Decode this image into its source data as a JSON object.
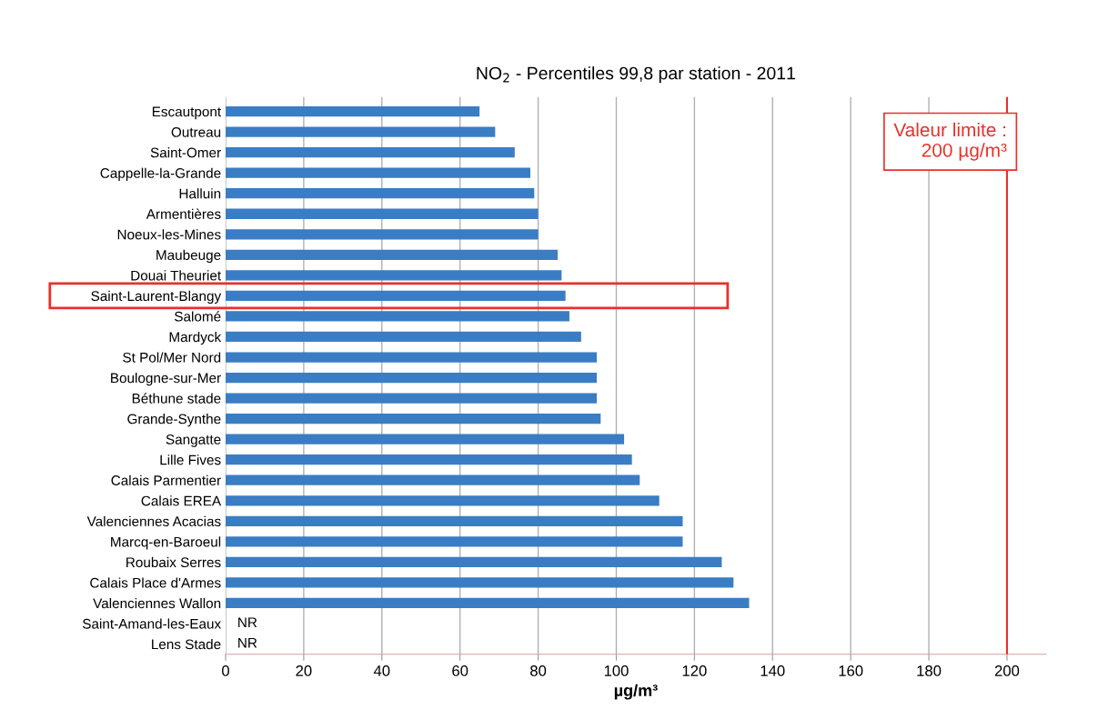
{
  "chart_data": {
    "type": "bar",
    "orientation": "horizontal",
    "title": "NO$_{2}$ - Percentiles 99,8 par station - 2011",
    "xlabel": "µg/m³",
    "categories": [
      "Escautpont",
      "Outreau",
      "Saint-Omer",
      "Cappelle-la-Grande",
      "Halluin",
      "Armentières",
      "Noeux-les-Mines",
      "Maubeuge",
      "Douai Theuriet",
      "Saint-Laurent-Blangy",
      "Salomé",
      "Mardyck",
      "St Pol/Mer Nord",
      "Boulogne-sur-Mer",
      "Béthune stade",
      "Grande-Synthe",
      "Sangatte",
      "Lille Fives",
      "Calais Parmentier",
      "Calais EREA",
      "Valenciennes Acacias",
      "Marcq-en-Baroeul",
      "Roubaix Serres",
      "Calais Place d'Armes",
      "Valenciennes Wallon",
      "Saint-Amand-les-Eaux",
      "Lens Stade"
    ],
    "values": [
      65,
      69,
      74,
      78,
      79,
      80,
      80,
      85,
      86,
      87,
      88,
      91,
      95,
      95,
      95,
      96,
      102,
      104,
      106,
      111,
      117,
      117,
      127,
      130,
      134,
      null,
      null
    ],
    "color": "#3a7dc4",
    "xlim": [
      0,
      210
    ],
    "xticks": [
      0,
      20,
      40,
      60,
      80,
      100,
      120,
      140,
      160,
      180,
      200
    ],
    "grid": "x",
    "ref_lines": [
      {
        "axis": "x",
        "value": 200,
        "label": "Valeur limite :\n200 µg/m³",
        "color": "#e8302a"
      }
    ],
    "annotations": [
      "NR",
      "NR"
    ]
  }
}
